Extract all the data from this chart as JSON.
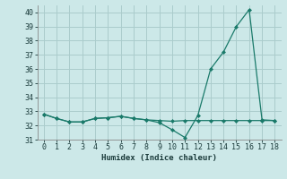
{
  "xlabel": "Humidex (Indice chaleur)",
  "x": [
    0,
    1,
    2,
    3,
    4,
    5,
    6,
    7,
    8,
    9,
    10,
    11,
    12,
    13,
    14,
    15,
    16,
    17,
    18
  ],
  "line1": [
    32.8,
    32.5,
    32.25,
    32.25,
    32.5,
    32.55,
    32.65,
    32.5,
    32.4,
    32.35,
    32.3,
    32.35,
    32.35,
    32.35,
    32.35,
    32.35,
    32.35,
    32.35,
    32.35
  ],
  "line2": [
    32.8,
    32.5,
    32.25,
    32.25,
    32.5,
    32.55,
    32.65,
    32.5,
    32.4,
    32.2,
    31.7,
    31.15,
    32.7,
    36.0,
    37.2,
    39.0,
    40.2,
    32.4,
    32.35
  ],
  "xlim": [
    -0.5,
    18.5
  ],
  "ylim": [
    31.0,
    40.5
  ],
  "yticks": [
    31,
    32,
    33,
    34,
    35,
    36,
    37,
    38,
    39,
    40
  ],
  "xticks": [
    0,
    1,
    2,
    3,
    4,
    5,
    6,
    7,
    8,
    9,
    10,
    11,
    12,
    13,
    14,
    15,
    16,
    17,
    18
  ],
  "line_color": "#1a7a6a",
  "bg_color": "#cce8e8",
  "grid_color": "#aacccc",
  "tick_color": "#1a3a3a",
  "label_fontsize": 6.5,
  "tick_fontsize": 6.0
}
